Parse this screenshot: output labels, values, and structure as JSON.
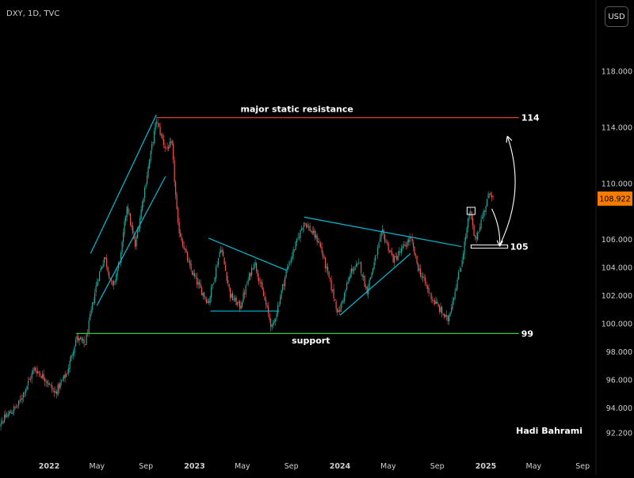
{
  "header": {
    "symbol_line": "DXY, 1D, TVC"
  },
  "currency_button": "USD",
  "author": "Hadi Bahrami",
  "colors": {
    "up_candle": "#26a69a",
    "down_candle": "#ef5350",
    "trendline": "#00bcd4",
    "resistance": "#e53935",
    "support": "#2ecc40",
    "current_price_tag": "#f57c00"
  },
  "chart_data": {
    "type": "candlestick",
    "symbol": "DXY",
    "timeframe": "1D",
    "source": "TVC",
    "x_tick_labels": [
      "2022",
      "May",
      "Sep",
      "2023",
      "May",
      "Sep",
      "2024",
      "May",
      "Sep",
      "2025",
      "May",
      "Sep"
    ],
    "x_ticks": [
      "2022-01-01",
      "2022-05-01",
      "2022-09-01",
      "2023-01-01",
      "2023-05-01",
      "2023-09-01",
      "2024-01-01",
      "2024-05-01",
      "2024-09-01",
      "2025-01-01",
      "2025-05-01",
      "2025-09-01"
    ],
    "y_ticks": [
      92.2,
      94.0,
      96.0,
      98.0,
      100.0,
      102.0,
      104.0,
      106.0,
      110.0,
      114.0,
      118.0
    ],
    "y_tick_labels": [
      "92.200",
      "94.000",
      "96.000",
      "98.000",
      "100.000",
      "102.000",
      "104.000",
      "106.000",
      "110.000",
      "114.000",
      "118.000"
    ],
    "ylim": [
      92.2,
      118.0
    ],
    "price_path": [
      [
        "2021-08-15",
        92.5
      ],
      [
        "2021-10-15",
        94.2
      ],
      [
        "2021-11-25",
        96.8
      ],
      [
        "2021-12-25",
        96.0
      ],
      [
        "2022-01-15",
        95.0
      ],
      [
        "2022-02-15",
        96.5
      ],
      [
        "2022-03-10",
        99.0
      ],
      [
        "2022-04-01",
        98.5
      ],
      [
        "2022-05-01",
        103.0
      ],
      [
        "2022-05-20",
        104.8
      ],
      [
        "2022-06-10",
        102.5
      ],
      [
        "2022-07-01",
        105.0
      ],
      [
        "2022-07-15",
        108.5
      ],
      [
        "2022-08-05",
        105.5
      ],
      [
        "2022-08-25",
        109.0
      ],
      [
        "2022-09-27",
        114.5
      ],
      [
        "2022-10-20",
        112.5
      ],
      [
        "2022-11-05",
        112.8
      ],
      [
        "2022-11-20",
        107.0
      ],
      [
        "2022-12-20",
        104.0
      ],
      [
        "2023-01-15",
        102.5
      ],
      [
        "2023-02-05",
        101.5
      ],
      [
        "2023-03-08",
        105.5
      ],
      [
        "2023-04-01",
        102.0
      ],
      [
        "2023-04-25",
        101.2
      ],
      [
        "2023-05-31",
        104.5
      ],
      [
        "2023-07-15",
        99.6
      ],
      [
        "2023-08-20",
        103.8
      ],
      [
        "2023-10-03",
        107.3
      ],
      [
        "2023-11-10",
        105.8
      ],
      [
        "2023-12-28",
        100.7
      ],
      [
        "2024-01-31",
        103.9
      ],
      [
        "2024-02-20",
        104.2
      ],
      [
        "2024-03-08",
        102.3
      ],
      [
        "2024-04-16",
        106.5
      ],
      [
        "2024-05-15",
        104.5
      ],
      [
        "2024-06-26",
        106.1
      ],
      [
        "2024-07-15",
        104.0
      ],
      [
        "2024-08-15",
        102.0
      ],
      [
        "2024-09-27",
        100.2
      ],
      [
        "2024-10-31",
        104.2
      ],
      [
        "2024-11-22",
        108.1
      ],
      [
        "2024-12-05",
        105.9
      ],
      [
        "2025-01-12",
        109.5
      ],
      [
        "2025-01-20",
        108.922
      ]
    ],
    "current_price": {
      "label": "108.922",
      "value": 108.922
    },
    "horizontal_levels": [
      {
        "label": "114",
        "value": 114.7,
        "start": "2022-09-27",
        "end": "2025-03-25",
        "color": "#e53935"
      },
      {
        "label": "99",
        "value": 99.3,
        "start": "2022-03-10",
        "end": "2025-03-25",
        "color": "#2ecc40"
      },
      {
        "label": "105",
        "value": 105.5,
        "start": "2024-11-25",
        "end": "2025-02-25",
        "color": "#ffffff"
      }
    ],
    "annotations": [
      {
        "text": "major static resistance",
        "x": "2023-09-15",
        "y": 115.1
      },
      {
        "text": "support",
        "x": "2023-10-20",
        "y": 98.6
      }
    ],
    "trendlines": [
      {
        "from": [
          "2022-04-15",
          105.0
        ],
        "to": [
          "2022-09-27",
          114.9
        ]
      },
      {
        "from": [
          "2022-05-01",
          101.3
        ],
        "to": [
          "2022-10-20",
          110.5
        ]
      },
      {
        "from": [
          "2023-02-05",
          106.1
        ],
        "to": [
          "2023-08-20",
          103.8
        ]
      },
      {
        "from": [
          "2023-02-10",
          100.9
        ],
        "to": [
          "2023-08-01",
          100.9
        ]
      },
      {
        "from": [
          "2023-10-03",
          107.6
        ],
        "to": [
          "2024-11-01",
          105.5
        ]
      },
      {
        "from": [
          "2024-01-01",
          100.6
        ],
        "to": [
          "2024-06-26",
          105.0
        ]
      }
    ],
    "boxes": [
      {
        "from": [
          "2024-11-15",
          108.3
        ],
        "to": [
          "2024-12-05",
          107.9
        ],
        "color": "#ffffff"
      }
    ],
    "projection_arrows": [
      {
        "from": [
          "2025-01-16",
          108.2
        ],
        "to": [
          "2025-02-05",
          105.6
        ]
      },
      {
        "from": [
          "2025-02-05",
          105.6
        ],
        "to": [
          "2025-02-25",
          113.3
        ]
      }
    ]
  }
}
